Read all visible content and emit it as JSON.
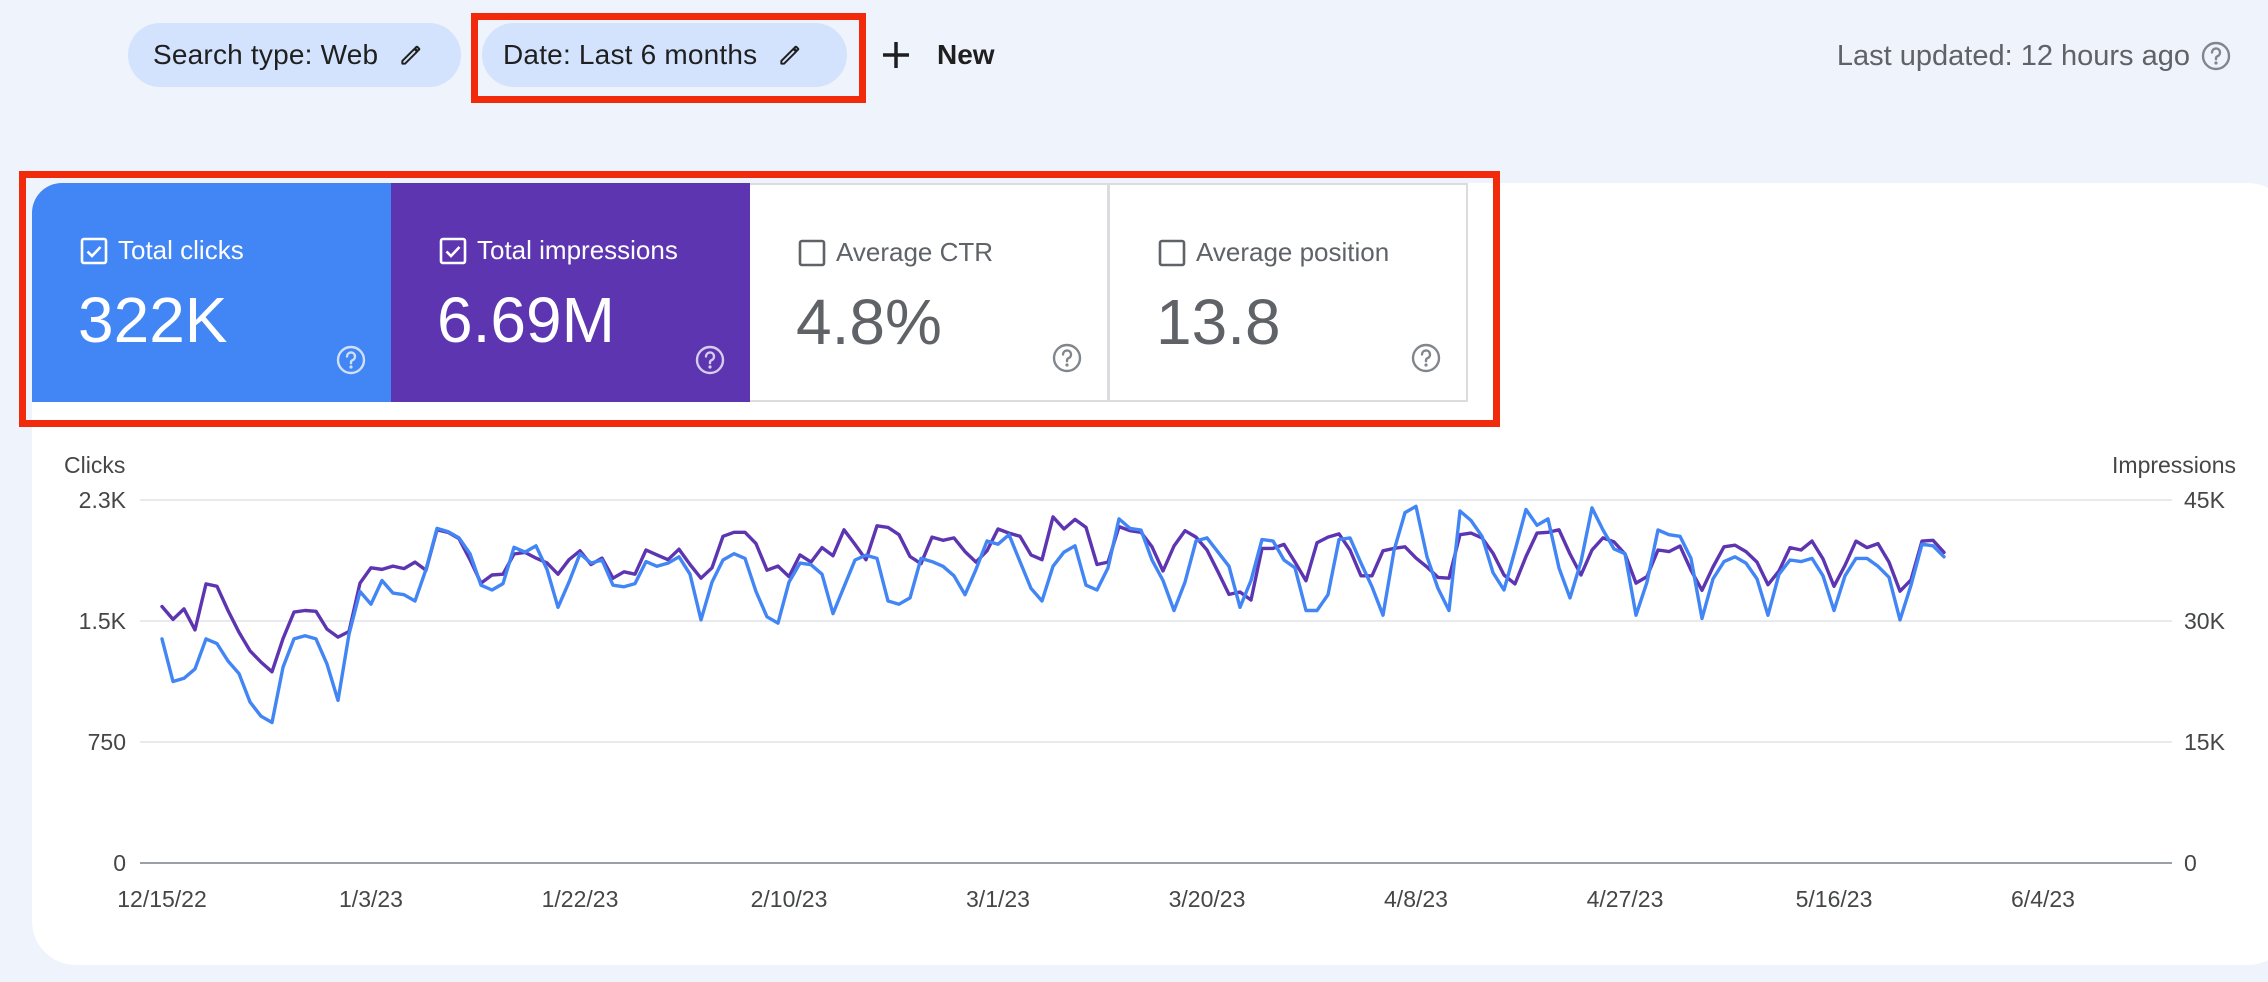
{
  "filters": {
    "search_type": "Search type: Web",
    "date": "Date: Last 6 months",
    "new_label": "New"
  },
  "last_updated": "Last updated: 12 hours ago",
  "metrics": [
    {
      "label": "Total clicks",
      "value": "322K",
      "checked": true,
      "color": "#4285f4"
    },
    {
      "label": "Total impressions",
      "value": "6.69M",
      "checked": true,
      "color": "#5e35b1"
    },
    {
      "label": "Average CTR",
      "value": "4.8%",
      "checked": false
    },
    {
      "label": "Average position",
      "value": "13.8",
      "checked": false
    }
  ],
  "chart_data": {
    "type": "line",
    "ylabel_left": "Clicks",
    "ylabel_right": "Impressions",
    "left_ticks": [
      "0",
      "750",
      "1.5K",
      "2.3K"
    ],
    "right_ticks": [
      "0",
      "15K",
      "30K",
      "45K"
    ],
    "ylim_left": [
      0,
      2300
    ],
    "ylim_right": [
      0,
      45000
    ],
    "x_tick_labels": [
      "12/15/22",
      "1/3/23",
      "1/22/23",
      "2/10/23",
      "3/1/23",
      "3/20/23",
      "4/8/23",
      "4/27/23",
      "5/16/23",
      "6/4/23"
    ],
    "x_start": "12/15/22",
    "grid": true,
    "series": [
      {
        "name": "Clicks",
        "axis": "left",
        "color": "#4285f4",
        "values": [
          1420,
          1150,
          1170,
          1230,
          1420,
          1390,
          1280,
          1200,
          1020,
          930,
          890,
          1240,
          1420,
          1440,
          1420,
          1260,
          1030,
          1450,
          1720,
          1640,
          1790,
          1710,
          1700,
          1660,
          1860,
          2120,
          2100,
          2060,
          1960,
          1760,
          1730,
          1770,
          2000,
          1970,
          2010,
          1860,
          1620,
          1780,
          1960,
          1900,
          1920,
          1760,
          1750,
          1770,
          1910,
          1880,
          1900,
          1940,
          1830,
          1540,
          1780,
          1920,
          1960,
          1930,
          1720,
          1560,
          1520,
          1780,
          1900,
          1890,
          1830,
          1580,
          1750,
          1920,
          1950,
          1930,
          1660,
          1640,
          1680,
          1930,
          1910,
          1880,
          1820,
          1700,
          1860,
          2040,
          2020,
          2080,
          1910,
          1740,
          1660,
          1880,
          1970,
          2010,
          1760,
          1730,
          1870,
          2180,
          2120,
          2110,
          1920,
          1790,
          1600,
          1780,
          2040,
          2060,
          1970,
          1880,
          1620,
          1790,
          2050,
          2040,
          1920,
          1870,
          1600,
          1600,
          1700,
          2050,
          2060,
          1900,
          1750,
          1570,
          1980,
          2220,
          2260,
          1940,
          1740,
          1600,
          2230,
          2170,
          2070,
          1840,
          1730,
          1980,
          2240,
          2140,
          2180,
          1870,
          1680,
          1910,
          2250,
          2110,
          1990,
          1960,
          1570,
          1780,
          2110,
          2080,
          2070,
          1930,
          1550,
          1800,
          1910,
          1940,
          1900,
          1800,
          1570,
          1830,
          1920,
          1910,
          1930,
          1820,
          1600,
          1820,
          1930,
          1930,
          1880,
          1810,
          1540,
          1760,
          2020,
          2010,
          1940
        ]
      },
      {
        "name": "Impressions",
        "axis": "right",
        "color": "#5e35b1",
        "values": [
          31800,
          30200,
          31500,
          28900,
          34600,
          34300,
          31300,
          28600,
          26300,
          24900,
          23700,
          27800,
          31100,
          31300,
          31200,
          29000,
          28000,
          28700,
          34700,
          36600,
          36400,
          36800,
          36500,
          37300,
          36300,
          41300,
          41000,
          40200,
          37600,
          34700,
          35700,
          35800,
          38300,
          38500,
          37800,
          37200,
          35800,
          37600,
          38700,
          37000,
          37800,
          35300,
          36100,
          35800,
          38800,
          38200,
          37600,
          38900,
          37000,
          35300,
          36600,
          40500,
          41000,
          41000,
          39600,
          36300,
          36800,
          35500,
          38200,
          37300,
          39100,
          38100,
          41300,
          39500,
          37600,
          41800,
          41600,
          40700,
          38000,
          37100,
          40400,
          40000,
          40300,
          38600,
          37300,
          38700,
          41400,
          40900,
          40500,
          38200,
          37600,
          42900,
          41400,
          42600,
          41600,
          37000,
          37300,
          41700,
          41200,
          41000,
          39200,
          36200,
          39300,
          41200,
          40400,
          38800,
          36100,
          33300,
          33600,
          32600,
          39000,
          39000,
          39500,
          37300,
          35000,
          39700,
          40400,
          40800,
          38800,
          35600,
          35600,
          38700,
          39000,
          39200,
          37800,
          36700,
          35400,
          35300,
          40700,
          40900,
          40300,
          38400,
          35700,
          34600,
          38000,
          40900,
          41000,
          41300,
          38300,
          35700,
          38800,
          40300,
          39800,
          38300,
          34700,
          35500,
          38800,
          38600,
          39300,
          36300,
          33800,
          36700,
          39200,
          39400,
          38600,
          37300,
          34500,
          36200,
          39100,
          38800,
          39900,
          37700,
          34300,
          36900,
          39900,
          39100,
          39600,
          37300,
          33700,
          35100,
          39900,
          40000,
          38500
        ]
      }
    ]
  }
}
